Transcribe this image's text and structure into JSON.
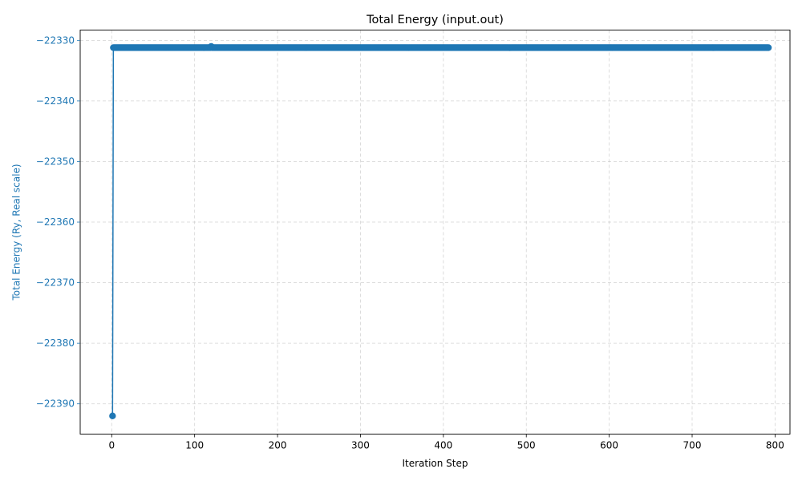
{
  "chart_data": {
    "type": "line",
    "title": "Total Energy (input.out)",
    "xlabel": "Iteration Step",
    "ylabel": "Total Energy (Ry, Real scale)",
    "xlim": [
      -38,
      818
    ],
    "ylim": [
      -22395.0,
      -22328.3
    ],
    "x_ticks": [
      0,
      100,
      200,
      300,
      400,
      500,
      600,
      700,
      800
    ],
    "x_tick_labels": [
      "0",
      "100",
      "200",
      "300",
      "400",
      "500",
      "600",
      "700",
      "800"
    ],
    "y_ticks": [
      -22390,
      -22380,
      -22370,
      -22360,
      -22350,
      -22340,
      -22330
    ],
    "y_tick_labels": [
      "−22390",
      "−22380",
      "−22370",
      "−22360",
      "−22350",
      "−22340",
      "−22330"
    ],
    "grid": true,
    "legend": "none",
    "series": [
      {
        "color": "#1f77b4",
        "marker": "circle",
        "x_start": 1,
        "x_end": 792,
        "first_value": -22392.0,
        "steady_value": -22331.2,
        "spike": {
          "x": 120,
          "value": -22331.0
        }
      }
    ]
  },
  "colors": {
    "series": "#1f77b4",
    "ylabel": "#1f77b4",
    "grid": "#b0b0b0",
    "axes": "#000000"
  }
}
